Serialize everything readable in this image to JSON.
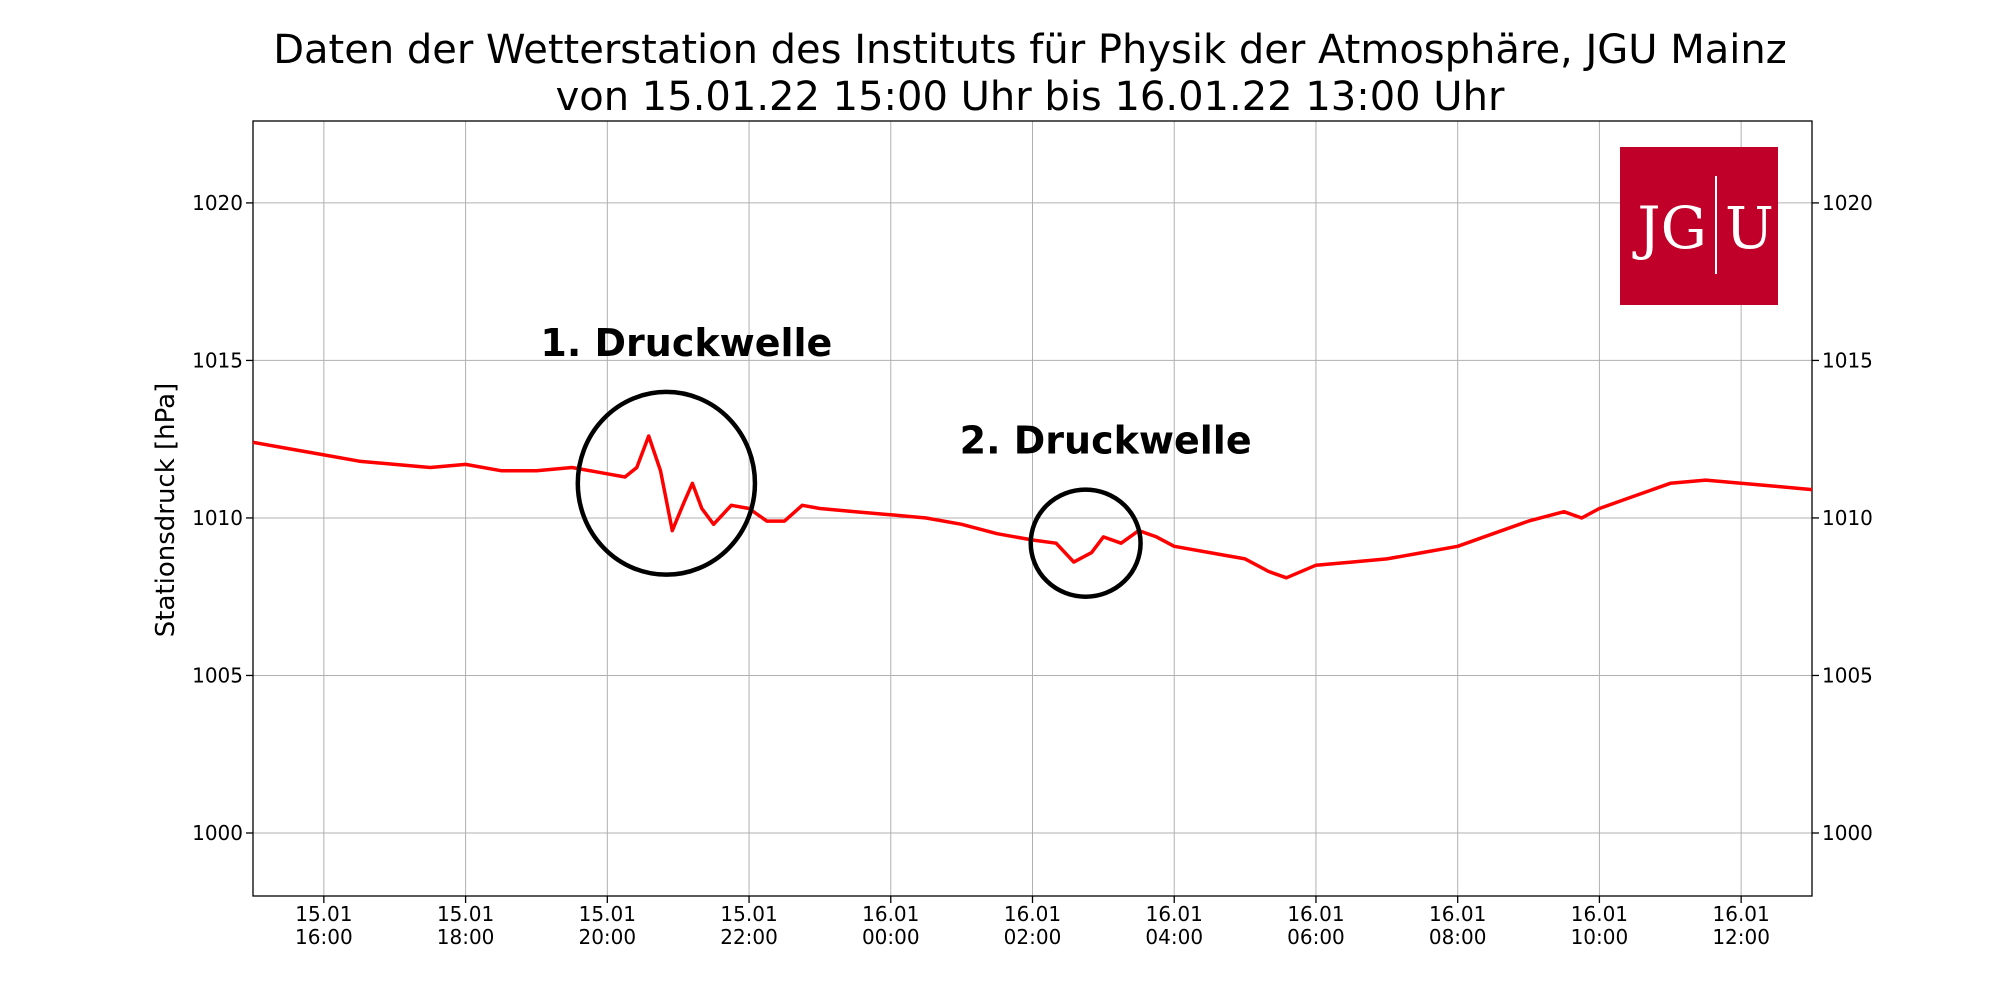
{
  "chart_data": {
    "type": "line",
    "title": "Daten der Wetterstation des Instituts für Physik der Atmosphäre, JGU Mainz",
    "subtitle": "von 15.01.22 15:00 Uhr bis 16.01.22 13:00 Uhr",
    "xlabel": "",
    "ylabel": "Stationsdruck [hPa]",
    "xlim": [
      "2022-01-15T15:00",
      "2022-01-16T13:00"
    ],
    "ylim": [
      998,
      1022.6
    ],
    "y_ticks": [
      1000,
      1005,
      1010,
      1015,
      1020
    ],
    "x_ticks": [
      {
        "t": "2022-01-15T16:00",
        "date": "15.01",
        "time": "16:00"
      },
      {
        "t": "2022-01-15T18:00",
        "date": "15.01",
        "time": "18:00"
      },
      {
        "t": "2022-01-15T20:00",
        "date": "15.01",
        "time": "20:00"
      },
      {
        "t": "2022-01-15T22:00",
        "date": "15.01",
        "time": "22:00"
      },
      {
        "t": "2022-01-16T00:00",
        "date": "16.01",
        "time": "00:00"
      },
      {
        "t": "2022-01-16T02:00",
        "date": "16.01",
        "time": "02:00"
      },
      {
        "t": "2022-01-16T04:00",
        "date": "16.01",
        "time": "04:00"
      },
      {
        "t": "2022-01-16T06:00",
        "date": "16.01",
        "time": "06:00"
      },
      {
        "t": "2022-01-16T08:00",
        "date": "16.01",
        "time": "08:00"
      },
      {
        "t": "2022-01-16T10:00",
        "date": "16.01",
        "time": "10:00"
      },
      {
        "t": "2022-01-16T12:00",
        "date": "16.01",
        "time": "12:00"
      }
    ],
    "grid": true,
    "series": [
      {
        "color": "#ff0000",
        "points": [
          [
            "2022-01-15T15:00",
            1012.4
          ],
          [
            "2022-01-15T15:30",
            1012.2
          ],
          [
            "2022-01-15T16:00",
            1012.0
          ],
          [
            "2022-01-15T16:30",
            1011.8
          ],
          [
            "2022-01-15T17:00",
            1011.7
          ],
          [
            "2022-01-15T17:30",
            1011.6
          ],
          [
            "2022-01-15T18:00",
            1011.7
          ],
          [
            "2022-01-15T18:30",
            1011.5
          ],
          [
            "2022-01-15T19:00",
            1011.5
          ],
          [
            "2022-01-15T19:30",
            1011.6
          ],
          [
            "2022-01-15T20:00",
            1011.4
          ],
          [
            "2022-01-15T20:15",
            1011.3
          ],
          [
            "2022-01-15T20:25",
            1011.6
          ],
          [
            "2022-01-15T20:35",
            1012.6
          ],
          [
            "2022-01-15T20:45",
            1011.5
          ],
          [
            "2022-01-15T20:55",
            1009.6
          ],
          [
            "2022-01-15T21:05",
            1010.5
          ],
          [
            "2022-01-15T21:12",
            1011.1
          ],
          [
            "2022-01-15T21:20",
            1010.3
          ],
          [
            "2022-01-15T21:30",
            1009.8
          ],
          [
            "2022-01-15T21:45",
            1010.4
          ],
          [
            "2022-01-15T22:00",
            1010.3
          ],
          [
            "2022-01-15T22:15",
            1009.9
          ],
          [
            "2022-01-15T22:30",
            1009.9
          ],
          [
            "2022-01-15T22:45",
            1010.4
          ],
          [
            "2022-01-15T23:00",
            1010.3
          ],
          [
            "2022-01-15T23:30",
            1010.2
          ],
          [
            "2022-01-16T00:00",
            1010.1
          ],
          [
            "2022-01-16T00:30",
            1010.0
          ],
          [
            "2022-01-16T01:00",
            1009.8
          ],
          [
            "2022-01-16T01:30",
            1009.5
          ],
          [
            "2022-01-16T02:00",
            1009.3
          ],
          [
            "2022-01-16T02:20",
            1009.2
          ],
          [
            "2022-01-16T02:35",
            1008.6
          ],
          [
            "2022-01-16T02:50",
            1008.9
          ],
          [
            "2022-01-16T03:00",
            1009.4
          ],
          [
            "2022-01-16T03:15",
            1009.2
          ],
          [
            "2022-01-16T03:30",
            1009.6
          ],
          [
            "2022-01-16T03:45",
            1009.4
          ],
          [
            "2022-01-16T04:00",
            1009.1
          ],
          [
            "2022-01-16T04:30",
            1008.9
          ],
          [
            "2022-01-16T05:00",
            1008.7
          ],
          [
            "2022-01-16T05:20",
            1008.3
          ],
          [
            "2022-01-16T05:35",
            1008.1
          ],
          [
            "2022-01-16T06:00",
            1008.5
          ],
          [
            "2022-01-16T06:30",
            1008.6
          ],
          [
            "2022-01-16T07:00",
            1008.7
          ],
          [
            "2022-01-16T07:30",
            1008.9
          ],
          [
            "2022-01-16T08:00",
            1009.1
          ],
          [
            "2022-01-16T08:30",
            1009.5
          ],
          [
            "2022-01-16T09:00",
            1009.9
          ],
          [
            "2022-01-16T09:30",
            1010.2
          ],
          [
            "2022-01-16T09:45",
            1010.0
          ],
          [
            "2022-01-16T10:00",
            1010.3
          ],
          [
            "2022-01-16T10:30",
            1010.7
          ],
          [
            "2022-01-16T11:00",
            1011.1
          ],
          [
            "2022-01-16T11:30",
            1011.2
          ],
          [
            "2022-01-16T12:00",
            1011.1
          ],
          [
            "2022-01-16T12:30",
            1011.0
          ],
          [
            "2022-01-16T13:00",
            1010.9
          ]
        ]
      }
    ],
    "annotations": [
      {
        "label": "1. Druckwelle",
        "center_t": "2022-01-15T20:50",
        "center_y": 1011.1,
        "span_hours": 2.5,
        "span_hpa": 5.8
      },
      {
        "label": "2. Druckwelle",
        "center_t": "2022-01-16T02:45",
        "center_y": 1009.2,
        "span_hours": 1.55,
        "span_hpa": 3.4
      }
    ]
  },
  "logo": {
    "left": "JG",
    "right": "U",
    "color": "#c1002a"
  }
}
